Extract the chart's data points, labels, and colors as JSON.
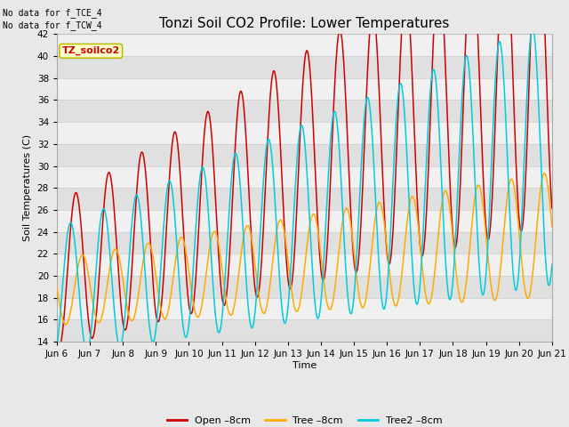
{
  "title": "Tonzi Soil CO2 Profile: Lower Temperatures",
  "ylabel": "Soil Temperatures (C)",
  "xlabel": "Time",
  "ylim": [
    14,
    42
  ],
  "yticks": [
    14,
    16,
    18,
    20,
    22,
    24,
    26,
    28,
    30,
    32,
    34,
    36,
    38,
    40,
    42
  ],
  "xtick_labels": [
    "Jun 6",
    "Jun 7",
    "Jun 8",
    "Jun 9",
    "Jun 10",
    "Jun 11",
    "Jun 12",
    "Jun 13",
    "Jun 14",
    "Jun 15",
    "Jun 16",
    "Jun 17",
    "Jun 18",
    "Jun 19",
    "Jun 20",
    "Jun 21"
  ],
  "xtick_positions": [
    0,
    1,
    2,
    3,
    4,
    5,
    6,
    7,
    8,
    9,
    10,
    11,
    12,
    13,
    14,
    15
  ],
  "line_colors": [
    "#cc0000",
    "#ffaa00",
    "#00ccdd"
  ],
  "line_labels": [
    "Open –8cm",
    "Tree –8cm",
    "Tree2 –8cm"
  ],
  "no_data_lines": [
    "No data for f_TCE_4",
    "No data for f_TCW_4"
  ],
  "watermark_text": "TZ_soilco2",
  "watermark_bg": "#ffffcc",
  "watermark_border": "#bbbb00",
  "bg_color": "#e8e8e8",
  "band_light": "#f0f0f0",
  "band_dark": "#e0e0e0",
  "title_fontsize": 11,
  "label_fontsize": 8,
  "tick_fontsize": 7.5,
  "legend_fontsize": 8,
  "n_points": 1500
}
